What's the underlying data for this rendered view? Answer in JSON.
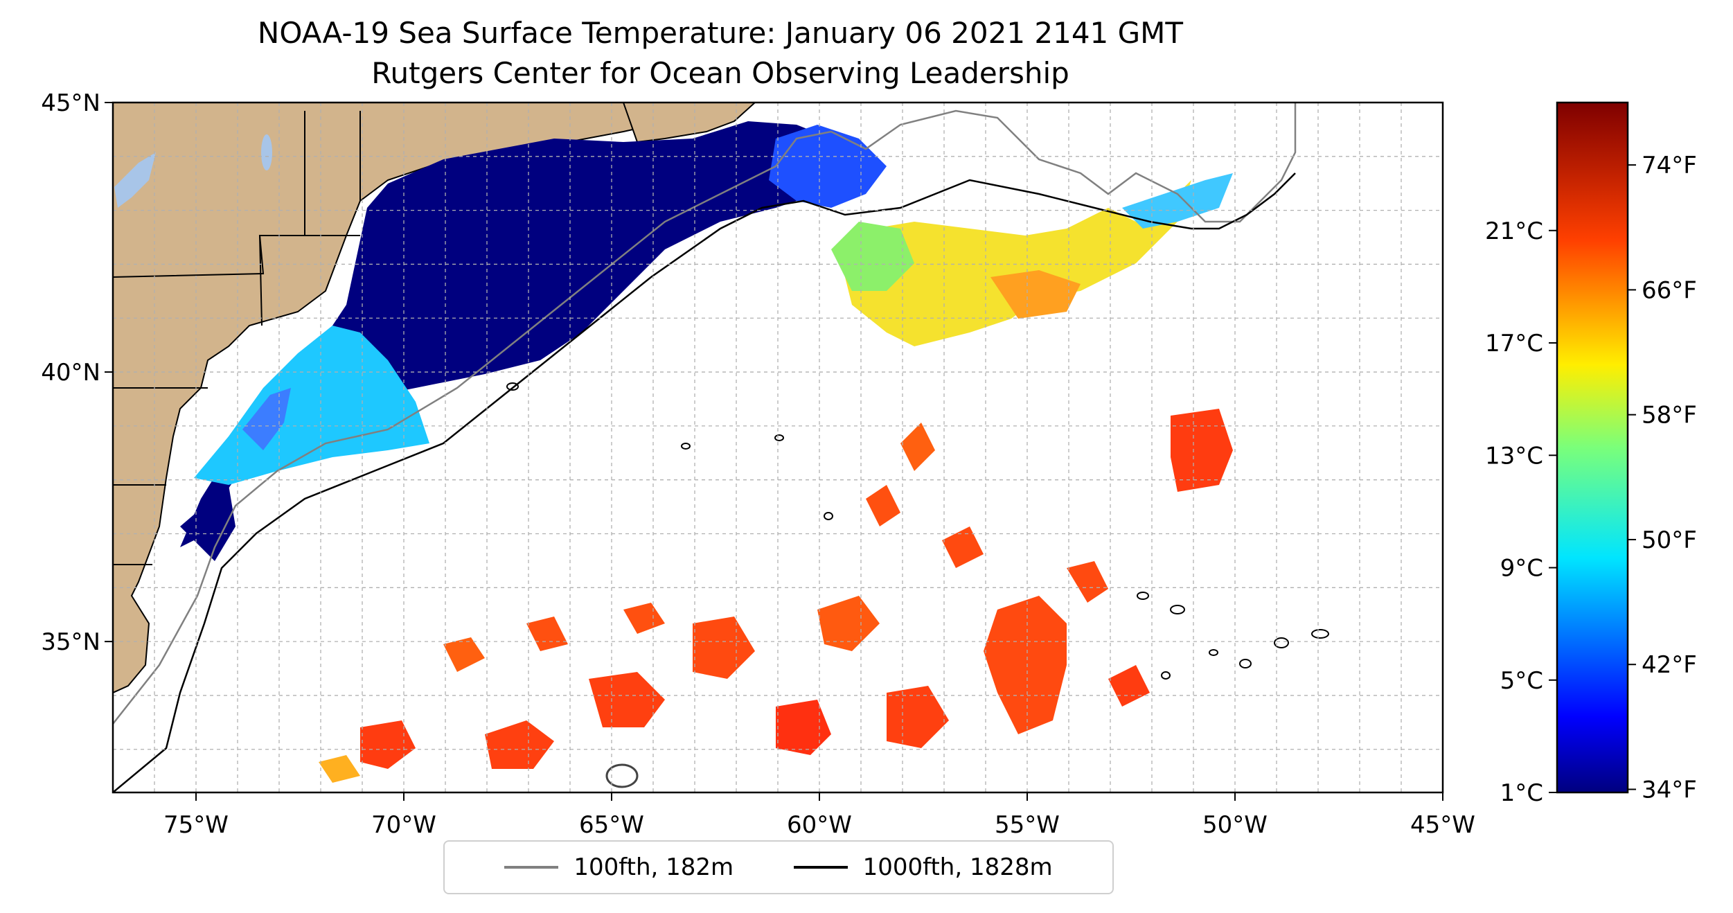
{
  "title": "NOAA-19 Sea Surface Temperature: January 06 2021 2141 GMT",
  "subtitle": "Rutgers Center for Ocean Observing Leadership",
  "map": {
    "lon_range": [
      -77,
      -45
    ],
    "lat_range": [
      32.2,
      45
    ],
    "lon_ticks": [
      "75°W",
      "70°W",
      "65°W",
      "60°W",
      "55°W",
      "50°W",
      "45°W"
    ],
    "lon_values": [
      -75,
      -70,
      -65,
      -60,
      -55,
      -50,
      -45
    ],
    "lat_ticks": [
      "45°N",
      "40°N",
      "35°N"
    ],
    "lat_values": [
      45,
      40,
      35
    ],
    "grid": true,
    "land_color": "#d2b48c",
    "lake_color": "#a8c5e8"
  },
  "colorbar": {
    "colormap": "jet",
    "celsius_labels": [
      "1°C",
      "5°C",
      "9°C",
      "13°C",
      "17°C",
      "21°C"
    ],
    "celsius_values": [
      1,
      5,
      9,
      13,
      17,
      21
    ],
    "fahrenheit_labels": [
      "34°F",
      "42°F",
      "50°F",
      "58°F",
      "66°F",
      "74°F"
    ],
    "fahrenheit_values": [
      34,
      42,
      50,
      58,
      66,
      74
    ],
    "range_f": [
      33.8,
      78
    ]
  },
  "legend": {
    "items": [
      {
        "label": "100fth, 182m",
        "color": "#808080"
      },
      {
        "label": "1000fth, 1828m",
        "color": "#000000"
      }
    ],
    "placement": "bottom-center"
  }
}
